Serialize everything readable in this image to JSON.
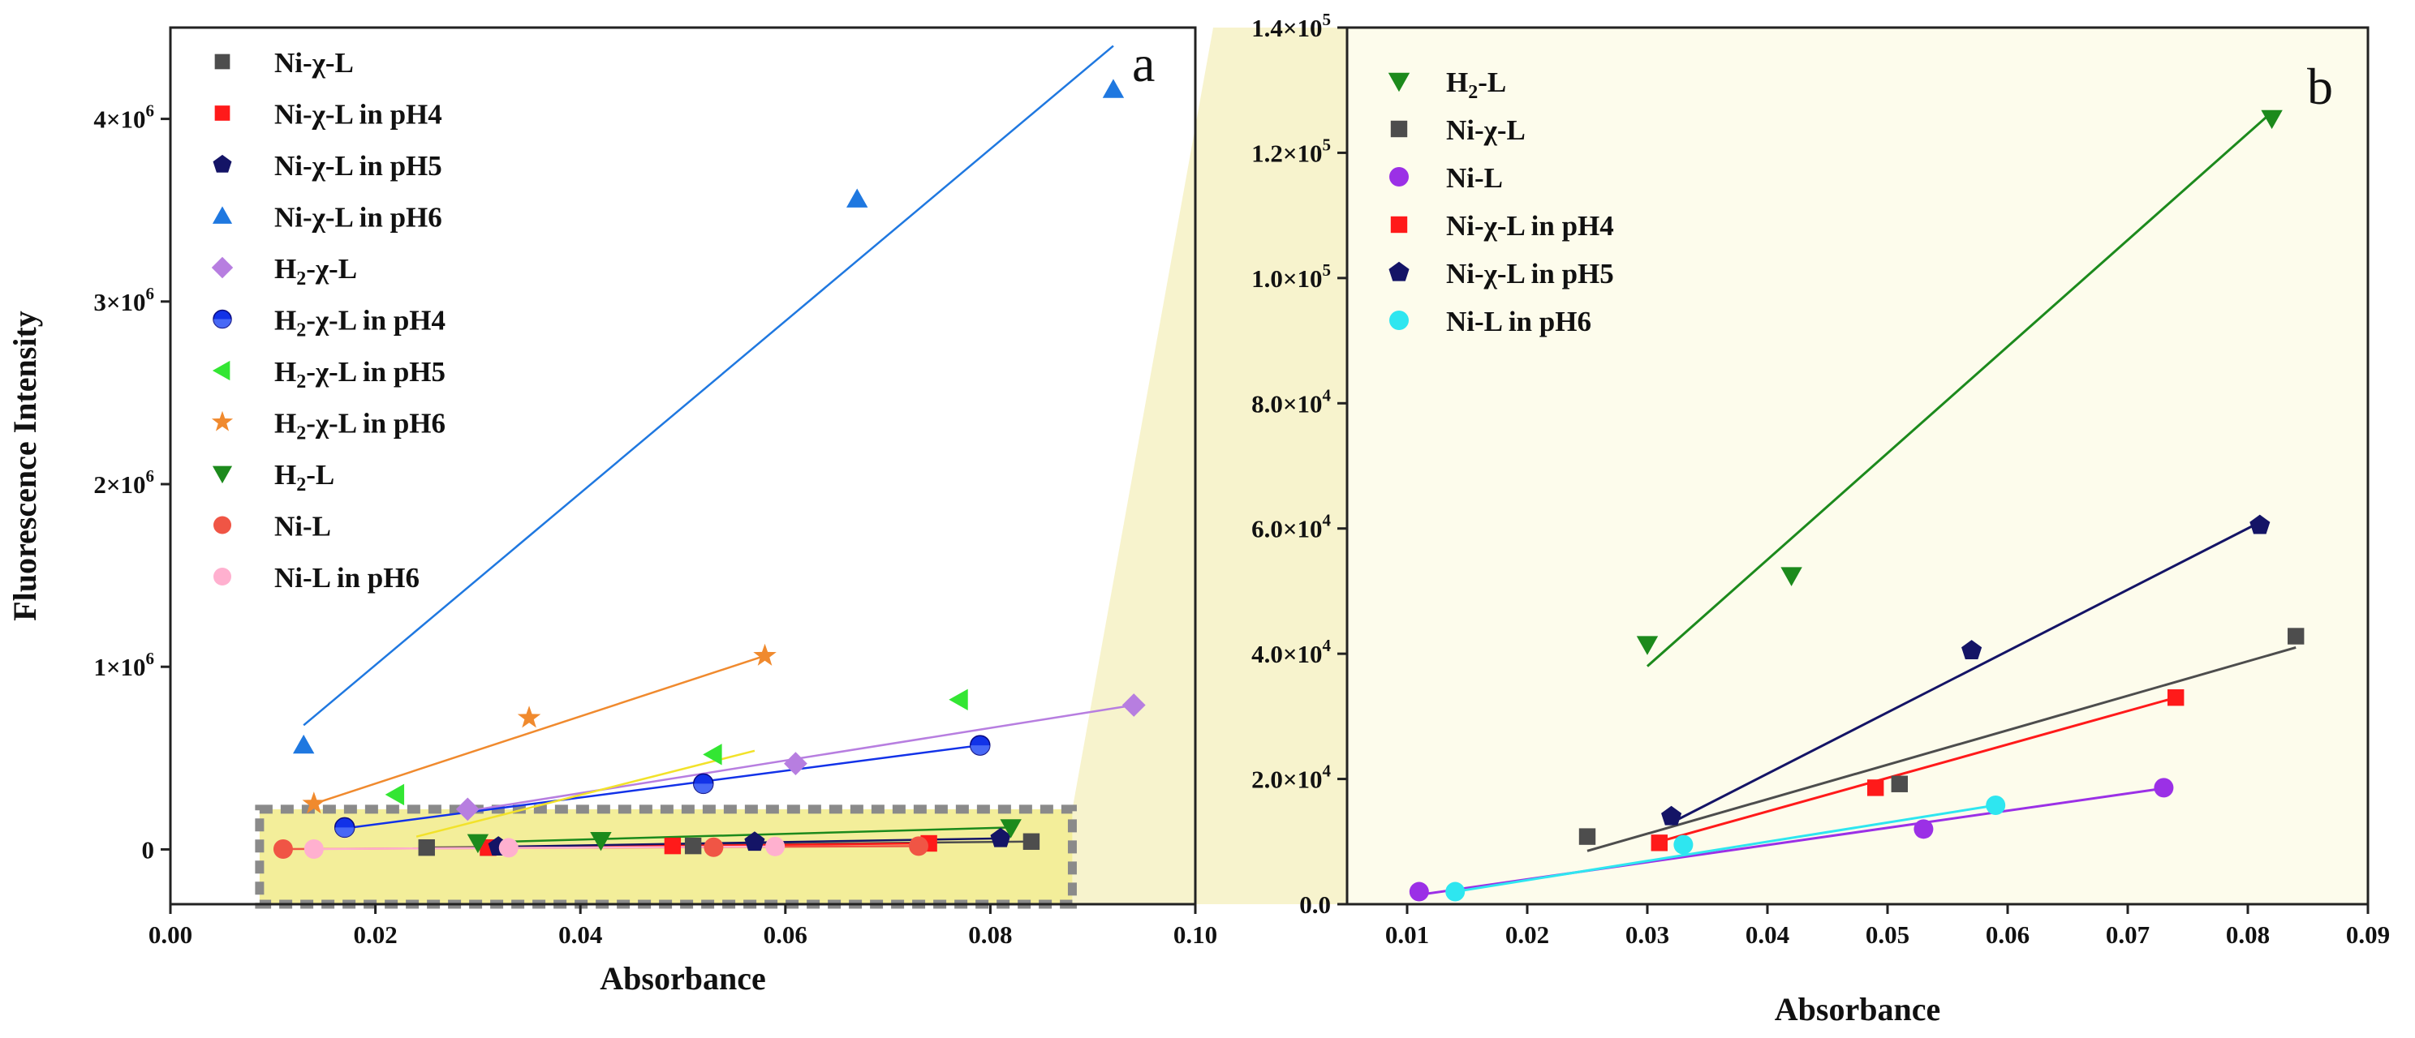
{
  "colors": {
    "Ni-χ-L": "#4d4d4d",
    "Ni-χ-L in pH4": "#ff1a1a",
    "Ni-χ-L in pH5": "#141466",
    "Ni-χ-L in pH6": "#1f78e0",
    "H2-χ-L": "#b77ee0",
    "H2-χ-L in pH4": "#1232e8",
    "H2-χ-L in pH5": "#33e633",
    "H2-χ-L in pH6": "#f08a2e",
    "H2-L": "#1c8a1c",
    "Ni-L": "#f05545",
    "Ni-L in pH6": "#ffb0cf",
    "Ni-L b": "#9b30e6",
    "Ni-L in pH6 b": "#2ee6f0",
    "highlight": "#f3ee9a",
    "panel_b_bg": "#fdfcec"
  },
  "chart_data": [
    {
      "panel": "a",
      "type": "scatter",
      "panel_label": "a",
      "xlabel": "Absorbance",
      "ylabel": "Fluorescence Intensity",
      "xlim": [
        0.0,
        0.1
      ],
      "ylim": [
        -300000,
        4500000
      ],
      "xticks": [
        0.0,
        0.02,
        0.04,
        0.06,
        0.08,
        0.1
      ],
      "xtick_labels": [
        "0.00",
        "0.02",
        "0.04",
        "0.06",
        "0.08",
        "0.10"
      ],
      "yticks": [
        0,
        1000000,
        2000000,
        3000000,
        4000000
      ],
      "ytick_labels": [
        {
          "base": "0",
          "exp": ""
        },
        {
          "base": "1×10",
          "exp": "6"
        },
        {
          "base": "2×10",
          "exp": "6"
        },
        {
          "base": "3×10",
          "exp": "6"
        },
        {
          "base": "4×10",
          "exp": "6"
        }
      ],
      "highlight_box": {
        "x": [
          0.0087,
          0.088
        ],
        "y": [
          -300000,
          220000
        ]
      },
      "series": [
        {
          "name": "Ni-χ-L",
          "label_parts": [
            "Ni-χ-L"
          ],
          "marker": "square",
          "color_key": "Ni-χ-L",
          "x": [
            0.025,
            0.031,
            0.051,
            0.084
          ],
          "y": [
            10000,
            10000,
            19000,
            43000
          ],
          "fit": [
            0.025,
            0.084
          ]
        },
        {
          "name": "Ni-χ-L in pH4",
          "label_parts": [
            "Ni-χ-L in pH4"
          ],
          "marker": "square",
          "color_key": "Ni-χ-L in pH4",
          "x": [
            0.031,
            0.049,
            0.074
          ],
          "y": [
            10000,
            19000,
            33000
          ],
          "fit": [
            0.031,
            0.074
          ]
        },
        {
          "name": "Ni-χ-L in pH5",
          "label_parts": [
            "Ni-χ-L in pH5"
          ],
          "marker": "pentagon",
          "color_key": "Ni-χ-L in pH5",
          "x": [
            0.032,
            0.057,
            0.081
          ],
          "y": [
            14000,
            40000,
            60000
          ],
          "fit": [
            0.032,
            0.081
          ]
        },
        {
          "name": "Ni-χ-L in pH6",
          "label_parts": [
            "Ni-χ-L in pH6"
          ],
          "marker": "triangle-up",
          "color_key": "Ni-χ-L in pH6",
          "x": [
            0.013,
            0.067,
            0.092
          ],
          "y": [
            570000,
            3560000,
            4160000
          ],
          "fit_points": [
            [
              0.013,
              680000
            ],
            [
              0.092,
              4400000
            ]
          ]
        },
        {
          "name": "H2-χ-L",
          "label_parts": [
            "H",
            "2",
            "-χ-L"
          ],
          "marker": "diamond",
          "color_key": "H2-χ-L",
          "x": [
            0.029,
            0.061,
            0.094
          ],
          "y": [
            220000,
            470000,
            790000
          ],
          "fit_points": [
            [
              0.029,
              210000
            ],
            [
              0.094,
              790000
            ]
          ]
        },
        {
          "name": "H2-χ-L in pH4",
          "label_parts": [
            "H",
            "2",
            "-χ-L in pH4"
          ],
          "marker": "circle-half",
          "color_key": "H2-χ-L in pH4",
          "x": [
            0.017,
            0.052,
            0.079
          ],
          "y": [
            120000,
            360000,
            570000
          ],
          "fit_points": [
            [
              0.017,
              115000
            ],
            [
              0.079,
              570000
            ]
          ]
        },
        {
          "name": "H2-χ-L in pH5",
          "label_parts": [
            "H",
            "2",
            "-χ-L in pH5"
          ],
          "marker": "triangle-left",
          "color_key": "H2-χ-L in pH5",
          "x": [
            0.022,
            0.053,
            0.077
          ],
          "y": [
            300000,
            520000,
            820000
          ],
          "fit_points": [
            [
              0.024,
              70000
            ],
            [
              0.057,
              540000
            ]
          ],
          "fit_color": "#f2e22a"
        },
        {
          "name": "H2-χ-L in pH6",
          "label_parts": [
            "H",
            "2",
            "-χ-L in pH6"
          ],
          "marker": "star",
          "color_key": "H2-χ-L in pH6",
          "x": [
            0.014,
            0.035,
            0.058
          ],
          "y": [
            250000,
            720000,
            1060000
          ],
          "fit_points": [
            [
              0.014,
              250000
            ],
            [
              0.058,
              1060000
            ]
          ]
        },
        {
          "name": "H2-L",
          "label_parts": [
            "H",
            "2",
            "-L"
          ],
          "marker": "triangle-down",
          "color_key": "H2-L",
          "x": [
            0.03,
            0.042,
            0.082
          ],
          "y": [
            38000,
            50000,
            120000
          ],
          "fit_points": [
            [
              0.03,
              38000
            ],
            [
              0.082,
              120000
            ]
          ]
        },
        {
          "name": "Ni-L",
          "label_parts": [
            "Ni-L"
          ],
          "marker": "circle",
          "color_key": "Ni-L",
          "x": [
            0.011,
            0.053,
            0.073
          ],
          "y": [
            2000,
            12000,
            18000
          ],
          "fit": [
            0.011,
            0.073
          ]
        },
        {
          "name": "Ni-L in pH6",
          "label_parts": [
            "Ni-L in pH6"
          ],
          "marker": "circle",
          "color_key": "Ni-L in pH6",
          "x": [
            0.014,
            0.033,
            0.059
          ],
          "y": [
            2000,
            9000,
            16000
          ],
          "fit": [
            0.014,
            0.059
          ]
        }
      ]
    },
    {
      "panel": "b",
      "type": "scatter",
      "panel_label": "b",
      "xlabel": "Absorbance",
      "ylabel": "",
      "xlim": [
        0.005,
        0.09
      ],
      "ylim": [
        0,
        140000
      ],
      "xticks": [
        0.01,
        0.02,
        0.03,
        0.04,
        0.05,
        0.06,
        0.07,
        0.08,
        0.09
      ],
      "xtick_labels": [
        "0.01",
        "0.02",
        "0.03",
        "0.04",
        "0.05",
        "0.06",
        "0.07",
        "0.08",
        "0.09"
      ],
      "yticks": [
        0,
        20000,
        40000,
        60000,
        80000,
        100000,
        120000,
        140000
      ],
      "ytick_labels": [
        {
          "base": "0.0",
          "exp": ""
        },
        {
          "base": "2.0×10",
          "exp": "4"
        },
        {
          "base": "4.0×10",
          "exp": "4"
        },
        {
          "base": "6.0×10",
          "exp": "4"
        },
        {
          "base": "8.0×10",
          "exp": "4"
        },
        {
          "base": "1.0×10",
          "exp": "5"
        },
        {
          "base": "1.2×10",
          "exp": "5"
        },
        {
          "base": "1.4×10",
          "exp": "5"
        }
      ],
      "series": [
        {
          "name": "H2-L",
          "label_parts": [
            "H",
            "2",
            "-L"
          ],
          "marker": "triangle-down",
          "color_key": "H2-L",
          "x": [
            0.03,
            0.042,
            0.082
          ],
          "y": [
            41500,
            52500,
            125500
          ],
          "fit_points": [
            [
              0.03,
              38000
            ],
            [
              0.082,
              126500
            ]
          ]
        },
        {
          "name": "Ni-χ-L",
          "label_parts": [
            "Ni-χ-L"
          ],
          "marker": "square",
          "color_key": "Ni-χ-L",
          "x": [
            0.025,
            0.051,
            0.084
          ],
          "y": [
            10800,
            19200,
            42800
          ],
          "fit_points": [
            [
              0.025,
              8500
            ],
            [
              0.084,
              41000
            ]
          ]
        },
        {
          "name": "Ni-L",
          "label_parts": [
            "Ni-L"
          ],
          "marker": "circle",
          "color_key": "Ni-L b",
          "x": [
            0.011,
            0.053,
            0.073
          ],
          "y": [
            2000,
            12000,
            18600
          ],
          "fit_points": [
            [
              0.011,
              1500
            ],
            [
              0.073,
              18500
            ]
          ]
        },
        {
          "name": "Ni-χ-L in pH4",
          "label_parts": [
            "Ni-χ-L in pH4"
          ],
          "marker": "square",
          "color_key": "Ni-χ-L in pH4",
          "x": [
            0.031,
            0.049,
            0.074
          ],
          "y": [
            9800,
            18600,
            33000
          ],
          "fit_points": [
            [
              0.031,
              10000
            ],
            [
              0.074,
              33000
            ]
          ]
        },
        {
          "name": "Ni-χ-L in pH5",
          "label_parts": [
            "Ni-χ-L in pH5"
          ],
          "marker": "pentagon",
          "color_key": "Ni-χ-L in pH5",
          "x": [
            0.032,
            0.057,
            0.081
          ],
          "y": [
            14000,
            40500,
            60500
          ],
          "fit_points": [
            [
              0.032,
              13000
            ],
            [
              0.081,
              61000
            ]
          ]
        },
        {
          "name": "Ni-L in pH6",
          "label_parts": [
            "Ni-L in pH6"
          ],
          "marker": "circle",
          "color_key": "Ni-L in pH6 b",
          "x": [
            0.014,
            0.033,
            0.059
          ],
          "y": [
            2000,
            9500,
            15800
          ],
          "fit_points": [
            [
              0.014,
              2000
            ],
            [
              0.059,
              15800
            ]
          ]
        }
      ]
    }
  ]
}
